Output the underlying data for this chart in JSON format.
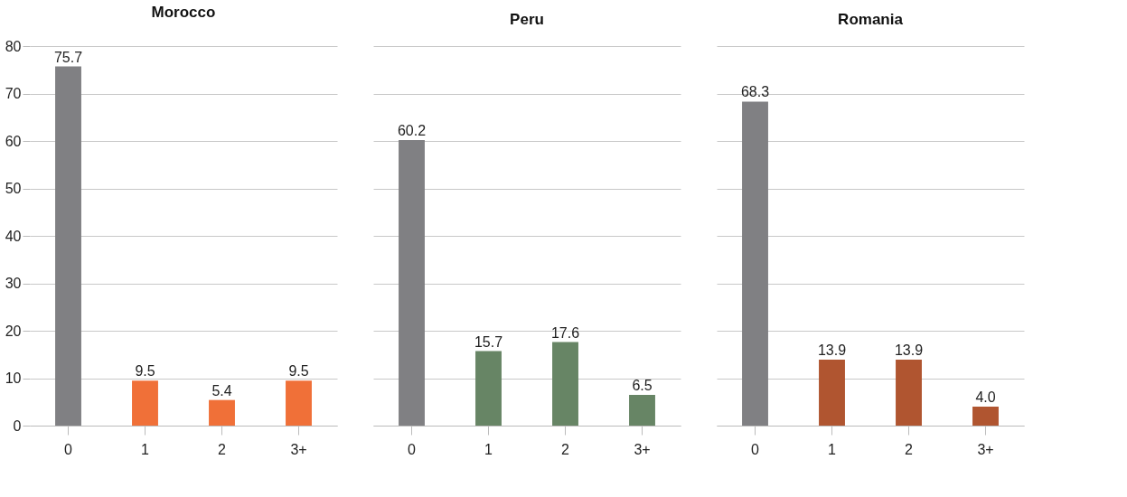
{
  "chart_data": [
    {
      "type": "bar",
      "title": "Morocco",
      "categories": [
        "0",
        "1",
        "2",
        "3+"
      ],
      "values": [
        75.7,
        9.5,
        5.4,
        9.5
      ],
      "value_labels": [
        "75.7",
        "9.5",
        "5.4",
        "9.5"
      ],
      "colors": [
        "#808083",
        "#f07038",
        "#f07038",
        "#f07038"
      ],
      "ylim": [
        0,
        80
      ],
      "yticks": [
        0,
        10,
        20,
        30,
        40,
        50,
        60,
        70,
        80
      ],
      "grid": "y"
    },
    {
      "type": "bar",
      "title": "Peru",
      "categories": [
        "0",
        "1",
        "2",
        "3+"
      ],
      "values": [
        60.2,
        15.7,
        17.6,
        6.5
      ],
      "value_labels": [
        "60.2",
        "15.7",
        "17.6",
        "6.5"
      ],
      "colors": [
        "#808083",
        "#678565",
        "#678565",
        "#678565"
      ],
      "ylim": [
        0,
        80
      ],
      "yticks": [
        0,
        10,
        20,
        30,
        40,
        50,
        60,
        70,
        80
      ],
      "grid": "y",
      "tick_labels": "x"
    },
    {
      "type": "bar",
      "title": "Romania",
      "categories": [
        "0",
        "1",
        "2",
        "3+"
      ],
      "values": [
        68.3,
        13.9,
        13.9,
        4.0
      ],
      "value_labels": [
        "68.3",
        "13.9",
        "13.9",
        "4.0"
      ],
      "colors": [
        "#808083",
        "#b05530",
        "#b05530",
        "#b05530"
      ],
      "ylim": [
        0,
        80
      ],
      "yticks": [
        0,
        10,
        20,
        30,
        40,
        50,
        60,
        70,
        80
      ],
      "grid": "y",
      "tick_labels": "x"
    }
  ]
}
